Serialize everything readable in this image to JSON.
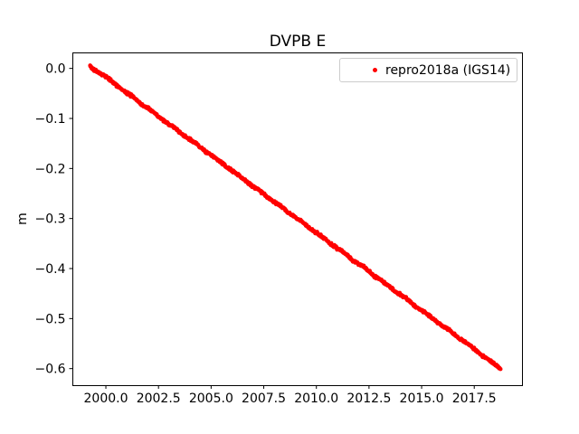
{
  "figure": {
    "background_color": "#ffffff",
    "text_color": "#000000",
    "legend_border_color": "#cccccc"
  },
  "chart_data": {
    "type": "scatter",
    "title": "DVPB E",
    "xlabel": "",
    "ylabel": "m",
    "grid": false,
    "xlim": [
      1998.43,
      2019.79
    ],
    "ylim": [
      -0.634,
      0.031
    ],
    "x_ticks": {
      "values": [
        2000.0,
        2002.5,
        2005.0,
        2007.5,
        2010.0,
        2012.5,
        2015.0,
        2017.5
      ],
      "labels": [
        "2000.0",
        "2002.5",
        "2005.0",
        "2007.5",
        "2010.0",
        "2012.5",
        "2015.0",
        "2017.5"
      ]
    },
    "y_ticks": {
      "values": [
        0.0,
        -0.1,
        -0.2,
        -0.3,
        -0.4,
        -0.5,
        -0.6
      ],
      "labels": [
        "0.0",
        "−0.1",
        "−0.2",
        "−0.3",
        "−0.4",
        "−0.5",
        "−0.6"
      ]
    },
    "legend": {
      "position": "upper right",
      "entries": [
        {
          "label": "repro2018a (IGS14)",
          "marker": "dot",
          "color": "#ff0000"
        }
      ]
    },
    "series": [
      {
        "name": "repro2018a (IGS14)",
        "color": "#ff0000",
        "marker": "dot",
        "trend": {
          "slope_m_per_yr": -0.031,
          "start": [
            1999.25,
            0.005
          ],
          "end": [
            2018.75,
            -0.601
          ]
        },
        "scatter_noise_m": 0.0038,
        "dots_per_segment": 26,
        "anchors": [
          [
            1999.25,
            0.005
          ],
          [
            1999.5,
            -0.005
          ],
          [
            1999.75,
            -0.01
          ],
          [
            2000.25,
            -0.024
          ],
          [
            2000.75,
            -0.043
          ],
          [
            2001.25,
            -0.055
          ],
          [
            2001.75,
            -0.074
          ],
          [
            2002.25,
            -0.087
          ],
          [
            2002.75,
            -0.105
          ],
          [
            2003.25,
            -0.118
          ],
          [
            2003.75,
            -0.136
          ],
          [
            2004.25,
            -0.149
          ],
          [
            2004.75,
            -0.167
          ],
          [
            2005.25,
            -0.18
          ],
          [
            2005.75,
            -0.198
          ],
          [
            2006.25,
            -0.211
          ],
          [
            2006.75,
            -0.229
          ],
          [
            2007.25,
            -0.242
          ],
          [
            2007.75,
            -0.26
          ],
          [
            2008.25,
            -0.273
          ],
          [
            2008.75,
            -0.291
          ],
          [
            2009.25,
            -0.304
          ],
          [
            2009.75,
            -0.322
          ],
          [
            2010.25,
            -0.335
          ],
          [
            2010.75,
            -0.353
          ],
          [
            2011.25,
            -0.366
          ],
          [
            2011.75,
            -0.384
          ],
          [
            2012.25,
            -0.397
          ],
          [
            2012.75,
            -0.415
          ],
          [
            2013.25,
            -0.428
          ],
          [
            2013.75,
            -0.446
          ],
          [
            2014.25,
            -0.459
          ],
          [
            2014.75,
            -0.477
          ],
          [
            2015.25,
            -0.49
          ],
          [
            2015.75,
            -0.508
          ],
          [
            2016.25,
            -0.521
          ],
          [
            2016.75,
            -0.539
          ],
          [
            2017.25,
            -0.552
          ],
          [
            2017.75,
            -0.57
          ],
          [
            2018.25,
            -0.584
          ],
          [
            2018.75,
            -0.601
          ]
        ]
      }
    ]
  },
  "render_seed": 42
}
